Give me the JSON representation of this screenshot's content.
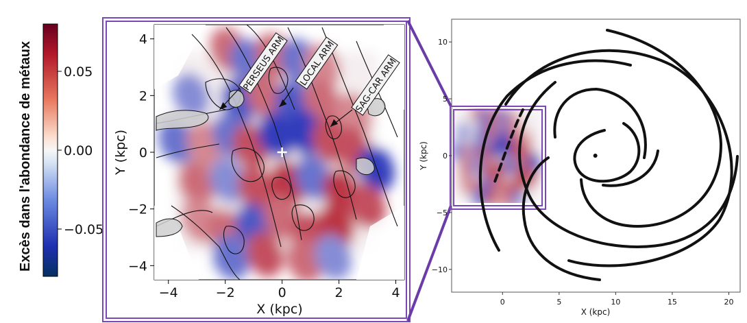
{
  "colorbar": {
    "label": "Excès dans l'abondance de métaux",
    "ticks": [
      {
        "value": 0.05,
        "label": "0.05"
      },
      {
        "value": 0.0,
        "label": "0.00"
      },
      {
        "value": -0.05,
        "label": "−0.05"
      }
    ],
    "range": [
      -0.08,
      0.08
    ],
    "colors": {
      "high": "#67001f",
      "mid": "#f7f7f7",
      "low": "#053061"
    }
  },
  "chart_data": [
    {
      "type": "heatmap",
      "xlabel": "X (kpc)",
      "ylabel": "Y (kpc)",
      "xlim": [
        -4.5,
        4.3
      ],
      "ylim": [
        -4.5,
        4.5
      ],
      "xticks": [
        {
          "value": -4,
          "label": "−4"
        },
        {
          "value": -2,
          "label": "−2"
        },
        {
          "value": 0,
          "label": "0"
        },
        {
          "value": 2,
          "label": "2"
        },
        {
          "value": 4,
          "label": "4"
        }
      ],
      "yticks": [
        {
          "value": 4,
          "label": "4"
        },
        {
          "value": 2,
          "label": "2"
        },
        {
          "value": 0,
          "label": "0"
        },
        {
          "value": -2,
          "label": "−2"
        },
        {
          "value": -4,
          "label": "−4"
        }
      ],
      "annotations": [
        {
          "text": "PERSEUS ARM",
          "arrow_tip": [
            -2.2,
            1.5
          ]
        },
        {
          "text": "LOCAL ARM",
          "arrow_tip": [
            -0.1,
            1.6
          ]
        },
        {
          "text": "SAG-CAR ARM",
          "arrow_tip": [
            1.7,
            0.9
          ]
        }
      ],
      "sun_position": [
        0,
        0
      ],
      "blobs": [
        {
          "x": -1.9,
          "y": 3.6,
          "v": 0.05
        },
        {
          "x": -1.2,
          "y": 3.2,
          "v": -0.05
        },
        {
          "x": -0.3,
          "y": 3.4,
          "v": 0.05
        },
        {
          "x": 0.6,
          "y": 3.2,
          "v": -0.05
        },
        {
          "x": 1.4,
          "y": 3.0,
          "v": 0.04
        },
        {
          "x": -3.2,
          "y": 2.0,
          "v": -0.04
        },
        {
          "x": -1.5,
          "y": 1.8,
          "v": -0.06
        },
        {
          "x": -0.6,
          "y": 2.0,
          "v": 0.05
        },
        {
          "x": 0.4,
          "y": 1.7,
          "v": -0.06
        },
        {
          "x": 1.4,
          "y": 1.8,
          "v": 0.05
        },
        {
          "x": 2.5,
          "y": 1.3,
          "v": 0.04
        },
        {
          "x": -3.7,
          "y": 0.4,
          "v": -0.05
        },
        {
          "x": -2.7,
          "y": 0.3,
          "v": 0.04
        },
        {
          "x": -1.8,
          "y": 0.6,
          "v": -0.05
        },
        {
          "x": -1.1,
          "y": 0.2,
          "v": 0.06
        },
        {
          "x": -0.2,
          "y": 0.6,
          "v": -0.07
        },
        {
          "x": 0.8,
          "y": 0.7,
          "v": -0.07
        },
        {
          "x": 1.7,
          "y": 0.4,
          "v": 0.06
        },
        {
          "x": 2.5,
          "y": 0.1,
          "v": 0.06
        },
        {
          "x": 3.3,
          "y": -0.6,
          "v": -0.07
        },
        {
          "x": -3.0,
          "y": -1.1,
          "v": 0.05
        },
        {
          "x": -1.9,
          "y": -1.0,
          "v": -0.04
        },
        {
          "x": -0.9,
          "y": -1.3,
          "v": 0.06
        },
        {
          "x": 0.2,
          "y": -1.1,
          "v": 0.07
        },
        {
          "x": 1.1,
          "y": -0.9,
          "v": -0.05
        },
        {
          "x": 2.1,
          "y": -1.4,
          "v": 0.07
        },
        {
          "x": 3.0,
          "y": -1.9,
          "v": 0.06
        },
        {
          "x": -2.9,
          "y": -2.4,
          "v": 0.04
        },
        {
          "x": -2.0,
          "y": -2.8,
          "v": 0.05
        },
        {
          "x": -1.0,
          "y": -2.6,
          "v": -0.06
        },
        {
          "x": 0.0,
          "y": -2.3,
          "v": 0.05
        },
        {
          "x": 1.0,
          "y": -2.9,
          "v": 0.06
        },
        {
          "x": 1.9,
          "y": -2.6,
          "v": 0.07
        },
        {
          "x": -1.8,
          "y": -3.7,
          "v": -0.05
        },
        {
          "x": -0.6,
          "y": -3.6,
          "v": 0.06
        },
        {
          "x": 0.8,
          "y": -3.8,
          "v": 0.05
        },
        {
          "x": 1.8,
          "y": -3.7,
          "v": -0.04
        }
      ]
    },
    {
      "type": "scatter",
      "xlabel": "X (kpc)",
      "ylabel": "Y (kpc)",
      "xlim": [
        -4.5,
        21
      ],
      "ylim": [
        -12,
        12
      ],
      "xticks": [
        {
          "value": 0,
          "label": "0"
        },
        {
          "value": 5,
          "label": "5"
        },
        {
          "value": 10,
          "label": "10"
        },
        {
          "value": 15,
          "label": "15"
        },
        {
          "value": 20,
          "label": "20"
        }
      ],
      "yticks": [
        {
          "value": 10,
          "label": "10"
        },
        {
          "value": 5,
          "label": "5"
        },
        {
          "value": 0,
          "label": "0"
        },
        {
          "value": -5,
          "label": "−5"
        },
        {
          "value": -10,
          "label": "−10"
        }
      ],
      "galactic_center": [
        8.2,
        0
      ],
      "inset_extent": {
        "x": [
          -4,
          4
        ],
        "y": [
          -4,
          4
        ]
      }
    }
  ]
}
